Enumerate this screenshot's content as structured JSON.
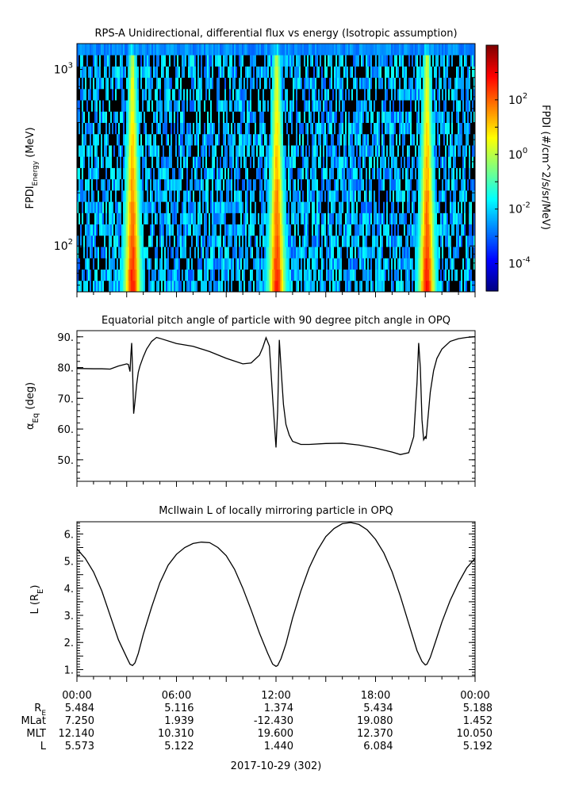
{
  "chart_data": [
    {
      "type": "heatmap",
      "title": "RPS-A Unidirectional, differential flux vs energy (Isotropic assumption)",
      "ylabel_main": "FPDI",
      "ylabel_sub": "Energy",
      "ylabel_unit": " (MeV)",
      "yscale": "log",
      "ylim": [
        55,
        1400
      ],
      "yticks": [
        {
          "value": 100,
          "base": "10",
          "exp": "2"
        },
        {
          "value": 1000,
          "base": "10",
          "exp": "3"
        }
      ],
      "xlim_hours": [
        0,
        24
      ],
      "colorbar": {
        "label": "FPDI (#/cm^2/s/sr/MeV)",
        "scale": "log",
        "range": [
          1e-05,
          10000.0
        ],
        "ticks": [
          {
            "value": 0.0001,
            "base": "10",
            "exp": "-4"
          },
          {
            "value": 0.01,
            "base": "10",
            "exp": "-2"
          },
          {
            "value": 1,
            "base": "10",
            "exp": "0"
          },
          {
            "value": 100,
            "base": "10",
            "exp": "2"
          }
        ]
      },
      "peaks": [
        {
          "hour": 3.35,
          "peak_flux": 500
        },
        {
          "hour": 12.05,
          "peak_flux": 500
        },
        {
          "hour": 21.1,
          "peak_flux": 500
        }
      ],
      "background_flux": 0.005
    },
    {
      "type": "line",
      "title": "Equatorial pitch angle of particle with 90 degree pitch angle in OPQ",
      "ylabel_main": "α",
      "ylabel_sub": "Eq",
      "ylabel_unit": " (deg)",
      "ylim": [
        43,
        92
      ],
      "yticks": [
        50,
        60,
        70,
        80,
        90
      ],
      "x_hours": [
        0,
        1,
        1.5,
        2,
        2.5,
        3,
        3.1,
        3.2,
        3.25,
        3.3,
        3.35,
        3.42,
        3.5,
        3.6,
        3.7,
        3.8,
        4.0,
        4.2,
        4.5,
        4.8,
        5.0,
        6,
        7,
        8,
        9,
        10,
        10.5,
        11,
        11.2,
        11.4,
        11.6,
        11.8,
        12.0,
        12.1,
        12.2,
        12.35,
        12.45,
        12.6,
        12.8,
        13.0,
        13.5,
        14,
        15,
        16,
        17,
        18,
        19,
        19.5,
        20,
        20.3,
        20.5,
        20.6,
        20.7,
        20.8,
        20.9,
        21.0,
        21.05,
        21.15,
        21.3,
        21.5,
        21.7,
        22,
        22.5,
        23,
        23.5,
        24
      ],
      "values": [
        79.7,
        79.6,
        79.6,
        79.5,
        80.5,
        81.2,
        81.0,
        78.7,
        84.0,
        88.0,
        80.0,
        65.0,
        69.0,
        74.5,
        78.5,
        80.5,
        83.5,
        86.0,
        88.5,
        89.8,
        89.5,
        87.8,
        86.9,
        85.2,
        83.0,
        81.2,
        81.5,
        84.0,
        86.5,
        89.7,
        87.0,
        70.0,
        54.0,
        66.0,
        89.0,
        76.0,
        68.0,
        61.5,
        58.0,
        56.0,
        55.0,
        55.0,
        55.3,
        55.4,
        54.8,
        53.8,
        52.5,
        51.7,
        52.3,
        57.5,
        75.0,
        88.0,
        80.0,
        63.0,
        56.5,
        57.5,
        56.8,
        63.0,
        72.0,
        79.0,
        83.0,
        86.0,
        88.5,
        89.4,
        89.8,
        90.0
      ]
    },
    {
      "type": "line",
      "title": "McIlwain L of locally mirroring particle in OPQ",
      "ylabel_main": "L",
      "ylabel_paren_open": " (R",
      "ylabel_sub": "E",
      "ylabel_paren_close": ")",
      "ylim": [
        0.75,
        6.45
      ],
      "yticks": [
        1.0,
        1.5,
        2.0,
        2.5,
        3.0,
        3.5,
        4.0,
        4.5,
        5.0,
        5.5,
        6.0
      ],
      "yticklabels": [
        "1.",
        "2.",
        "3.",
        "4.",
        "5.",
        "6."
      ],
      "x_hours": [
        0,
        0.5,
        1,
        1.5,
        2,
        2.5,
        3,
        3.2,
        3.35,
        3.5,
        3.7,
        4,
        4.5,
        5,
        5.5,
        6,
        6.5,
        7,
        7.5,
        8,
        8.5,
        9,
        9.5,
        10,
        10.5,
        11,
        11.5,
        11.8,
        12.0,
        12.1,
        12.3,
        12.6,
        13,
        13.5,
        14,
        14.5,
        15,
        15.5,
        16,
        16.5,
        17,
        17.5,
        18,
        18.5,
        19,
        19.5,
        20,
        20.5,
        20.8,
        21.0,
        21.1,
        21.3,
        21.6,
        22,
        22.5,
        23,
        23.5,
        24
      ],
      "values": [
        5.45,
        5.1,
        4.6,
        3.9,
        3.0,
        2.1,
        1.45,
        1.2,
        1.15,
        1.25,
        1.6,
        2.3,
        3.3,
        4.2,
        4.85,
        5.25,
        5.5,
        5.65,
        5.7,
        5.68,
        5.5,
        5.2,
        4.7,
        4.0,
        3.2,
        2.35,
        1.6,
        1.2,
        1.12,
        1.15,
        1.4,
        1.95,
        2.9,
        3.9,
        4.75,
        5.4,
        5.9,
        6.2,
        6.38,
        6.42,
        6.35,
        6.15,
        5.8,
        5.3,
        4.6,
        3.7,
        2.7,
        1.7,
        1.3,
        1.17,
        1.2,
        1.45,
        2.0,
        2.75,
        3.55,
        4.2,
        4.75,
        5.1
      ]
    }
  ],
  "time_axis": {
    "ticks": [
      {
        "hour": 0,
        "label": "00:00"
      },
      {
        "hour": 6,
        "label": "06:00"
      },
      {
        "hour": 12,
        "label": "12:00"
      },
      {
        "hour": 18,
        "label": "18:00"
      },
      {
        "hour": 24,
        "label": "00:00"
      }
    ],
    "date_label": "2017-10-29 (302)"
  },
  "ephemeris": {
    "rows": [
      {
        "label": "R",
        "label_sub": "E",
        "values": [
          "5.484",
          "5.116",
          "1.374",
          "5.434",
          "5.188"
        ]
      },
      {
        "label": "MLat",
        "label_sub": "",
        "values": [
          "7.250",
          "1.939",
          "-12.430",
          "19.080",
          "1.452"
        ]
      },
      {
        "label": "MLT",
        "label_sub": "",
        "values": [
          "12.140",
          "10.310",
          "19.600",
          "12.370",
          "10.050"
        ]
      },
      {
        "label": "L",
        "label_sub": "",
        "values": [
          "5.573",
          "5.122",
          "1.440",
          "6.084",
          "5.192"
        ]
      }
    ]
  },
  "colors": {
    "trace": "#000000",
    "axis": "#000000",
    "background": "#ffffff"
  }
}
